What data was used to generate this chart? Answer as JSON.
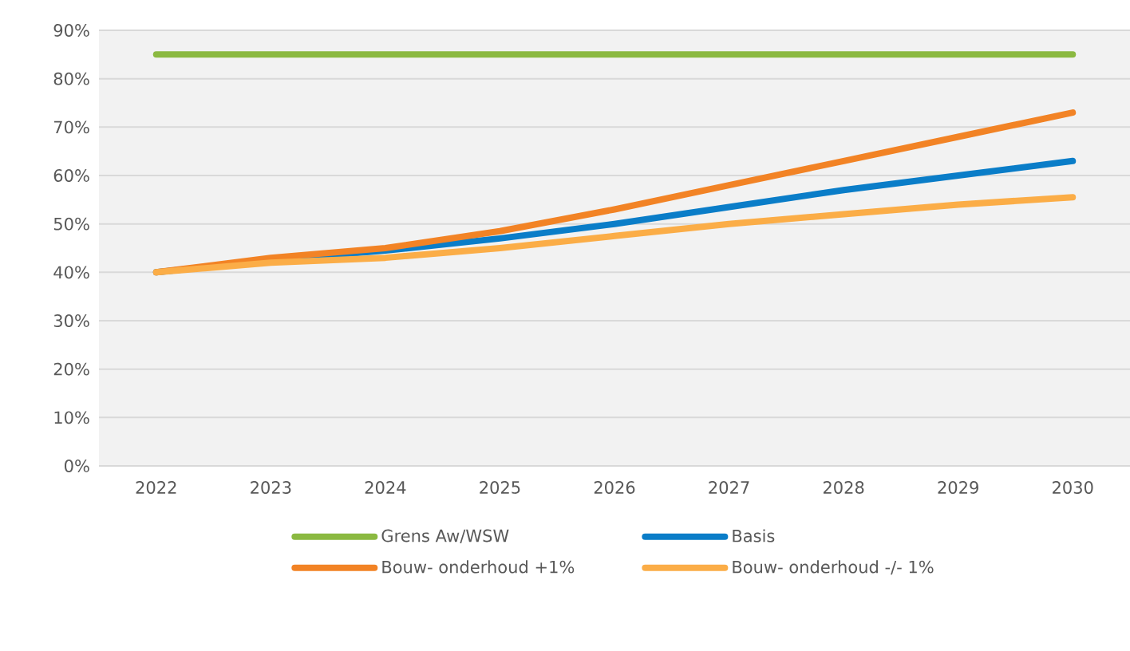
{
  "chart_data": {
    "type": "line",
    "categories": [
      "2022",
      "2023",
      "2024",
      "2025",
      "2026",
      "2027",
      "2028",
      "2029",
      "2030"
    ],
    "series": [
      {
        "name": "Grens Aw/WSW",
        "color": "#8bb941",
        "values": [
          85,
          85,
          85,
          85,
          85,
          85,
          85,
          85,
          85
        ]
      },
      {
        "name": "Basis",
        "color": "#0a7dc8",
        "values": [
          40,
          42.5,
          44.5,
          47,
          50,
          53.5,
          57,
          60,
          63
        ]
      },
      {
        "name": "Bouw- onderhoud +1%",
        "color": "#f28325",
        "values": [
          40,
          43,
          45,
          48.5,
          53,
          58,
          63,
          68,
          73
        ]
      },
      {
        "name": "Bouw- onderhoud -/- 1%",
        "color": "#fbad47",
        "values": [
          40,
          42,
          43,
          45,
          47.5,
          50,
          52,
          54,
          55.5
        ]
      }
    ],
    "ylim": [
      0,
      90
    ],
    "yticks": [
      {
        "value": 0,
        "label": "0%"
      },
      {
        "value": 10,
        "label": "10%"
      },
      {
        "value": 20,
        "label": "20%"
      },
      {
        "value": 30,
        "label": "30%"
      },
      {
        "value": 40,
        "label": "40%"
      },
      {
        "value": 50,
        "label": "50%"
      },
      {
        "value": 60,
        "label": "60%"
      },
      {
        "value": 70,
        "label": "70%"
      },
      {
        "value": 80,
        "label": "80%"
      },
      {
        "value": 90,
        "label": "90%"
      }
    ],
    "grid": "y",
    "legend": "bottom",
    "line_style": "solid"
  }
}
